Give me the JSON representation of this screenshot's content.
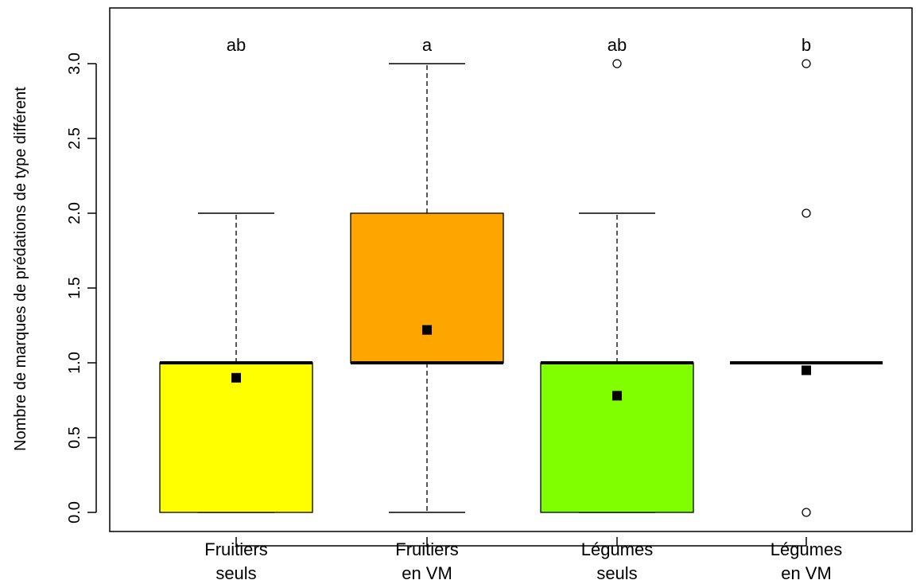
{
  "chart_data": {
    "type": "boxplot",
    "ylabel": "Nombre de marques de prédations de type différent",
    "xlabel": "",
    "ylim": [
      0,
      3.2
    ],
    "yticks": [
      "0.0",
      "0.5",
      "1.0",
      "1.5",
      "2.0",
      "2.5",
      "3.0"
    ],
    "grid": false,
    "groups": [
      {
        "label_line1": "Fruitiers",
        "label_line2": "seuls",
        "letter": "ab",
        "color": "#FFFF00",
        "whisker_low": 0,
        "q1": 0,
        "median": 1,
        "q3": 1,
        "whisker_high": 2,
        "mean": 0.9,
        "outliers": []
      },
      {
        "label_line1": "Fruitiers",
        "label_line2": "en VM",
        "letter": "a",
        "color": "#FFA500",
        "whisker_low": 0,
        "q1": 1,
        "median": 1,
        "q3": 2,
        "whisker_high": 3,
        "mean": 1.22,
        "outliers": []
      },
      {
        "label_line1": "Légumes",
        "label_line2": "seuls",
        "letter": "ab",
        "color": "#7FFF00",
        "whisker_low": 0,
        "q1": 0,
        "median": 1,
        "q3": 1,
        "whisker_high": 2,
        "mean": 0.78,
        "outliers": [
          3
        ]
      },
      {
        "label_line1": "Légumes",
        "label_line2": "en VM",
        "letter": "b",
        "color": "#FFFFFF",
        "whisker_low": 1,
        "q1": 1,
        "median": 1,
        "q3": 1,
        "whisker_high": 1,
        "mean": 0.95,
        "outliers": [
          0,
          2,
          3
        ]
      }
    ]
  }
}
